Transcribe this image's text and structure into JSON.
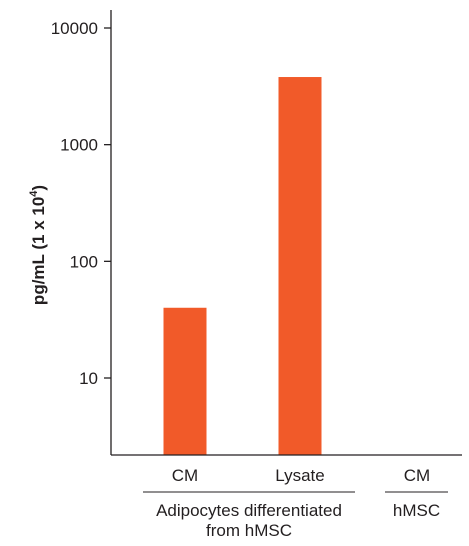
{
  "chart_data": {
    "type": "bar",
    "categories": [
      "CM",
      "Lysate",
      "CM"
    ],
    "values": [
      40,
      3800,
      null
    ],
    "bar_color": "#f15a29",
    "y_scale": "log",
    "ylim": [
      3,
      15000
    ],
    "yticks": [
      10,
      100,
      1000,
      10000
    ],
    "ytick_labels": [
      "10",
      "100",
      "1000",
      "10000"
    ],
    "ylabel": "pg/mL (1 x 10",
    "ylabel_sup": "4",
    "ylabel_end": ")",
    "groups": [
      {
        "line1": "Adipocytes differentiated",
        "line2": "from hMSC",
        "categories": [
          0,
          1
        ]
      },
      {
        "line1": "hMSC",
        "categories": [
          2
        ]
      }
    ],
    "grid": false,
    "legend": "none"
  }
}
